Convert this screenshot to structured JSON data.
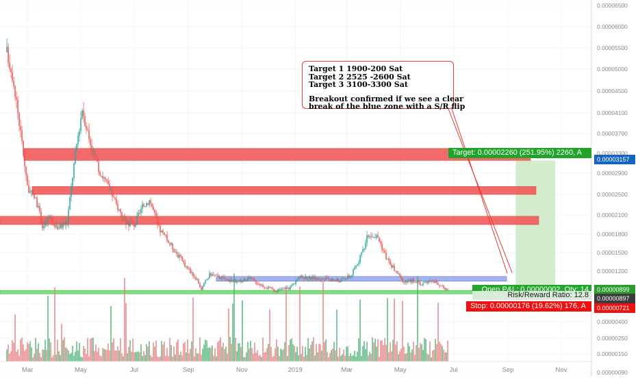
{
  "chart_data": {
    "type": "candlestick",
    "title": "",
    "xlabel": "",
    "ylabel": "",
    "x_ticks": [
      "Mar",
      "May",
      "Jul",
      "Sep",
      "Nov",
      "2019",
      "Mar",
      "May",
      "Jul",
      "Sep",
      "Nov"
    ],
    "y_ticks": [
      "0.00006500",
      "0.00006000",
      "0.00005500",
      "0.00005000",
      "0.00004500",
      "0.00004100",
      "0.00003700",
      "0.00003300",
      "0.00002900",
      "0.00002500",
      "0.00002100",
      "0.00001800",
      "0.00001500",
      "0.00001200",
      "0.00000900",
      "0.00000600",
      "0.00000400",
      "0.00000250",
      "0.00000150",
      "0.00000090"
    ],
    "price_path": [
      [
        "2018-02-05",
        5.4e-05
      ],
      [
        "2018-02-12",
        4.8e-05
      ],
      [
        "2018-02-20",
        3.8e-05
      ],
      [
        "2018-03-01",
        2.6e-05
      ],
      [
        "2018-03-10",
        2.4e-05
      ],
      [
        "2018-03-18",
        1.9e-05
      ],
      [
        "2018-03-25",
        2.05e-05
      ],
      [
        "2018-04-05",
        1.9e-05
      ],
      [
        "2018-04-15",
        2e-05
      ],
      [
        "2018-04-25",
        3.4e-05
      ],
      [
        "2018-05-02",
        4.2e-05
      ],
      [
        "2018-05-10",
        3.6e-05
      ],
      [
        "2018-05-20",
        3e-05
      ],
      [
        "2018-06-01",
        2.65e-05
      ],
      [
        "2018-06-10",
        2.3e-05
      ],
      [
        "2018-06-20",
        2e-05
      ],
      [
        "2018-07-01",
        1.95e-05
      ],
      [
        "2018-07-10",
        2.25e-05
      ],
      [
        "2018-07-18",
        2.4e-05
      ],
      [
        "2018-07-28",
        1.9e-05
      ],
      [
        "2018-08-10",
        1.65e-05
      ],
      [
        "2018-08-25",
        1.35e-05
      ],
      [
        "2018-09-08",
        1.1e-05
      ],
      [
        "2018-09-15",
        9e-06
      ],
      [
        "2018-09-25",
        1.15e-05
      ],
      [
        "2018-10-10",
        1.08e-05
      ],
      [
        "2018-10-25",
        1.02e-05
      ],
      [
        "2018-11-10",
        1.07e-05
      ],
      [
        "2018-11-25",
        9.5e-06
      ],
      [
        "2018-12-10",
        8.6e-06
      ],
      [
        "2018-12-25",
        9.2e-06
      ],
      [
        "2019-01-05",
        1.1e-05
      ],
      [
        "2019-01-20",
        1.08e-05
      ],
      [
        "2019-02-05",
        1.06e-05
      ],
      [
        "2019-02-20",
        1.04e-05
      ],
      [
        "2019-03-05",
        1.12e-05
      ],
      [
        "2019-03-15",
        1.4e-05
      ],
      [
        "2019-03-25",
        1.8e-05
      ],
      [
        "2019-04-05",
        1.75e-05
      ],
      [
        "2019-04-15",
        1.4e-05
      ],
      [
        "2019-04-25",
        1.2e-05
      ],
      [
        "2019-05-05",
        1e-05
      ],
      [
        "2019-05-15",
        1.05e-05
      ],
      [
        "2019-05-25",
        9.8e-06
      ],
      [
        "2019-06-05",
        1.06e-05
      ],
      [
        "2019-06-15",
        9.5e-06
      ],
      [
        "2019-06-24",
        8.8e-06
      ]
    ],
    "zones": [
      {
        "color": "red",
        "low": 3.157e-05,
        "high": 3.4e-05
      },
      {
        "color": "red",
        "low": 2.5e-05,
        "high": 2.65e-05
      },
      {
        "color": "red",
        "low": 1.95e-05,
        "high": 2.08e-05
      },
      {
        "color": "blue",
        "low": 1.03e-05,
        "high": 1.11e-05
      },
      {
        "color": "green",
        "low": 8.2e-06,
        "high": 8.7e-06
      }
    ],
    "position": {
      "entry": 8.97e-06,
      "target": 3.157e-05,
      "stop": 7.21e-06,
      "start": "2019-09-10",
      "end": "2019-10-25"
    },
    "axis_tags": {
      "target_value": "0.00003157",
      "current_value": "0.00000899",
      "entry_value": "0.00000897",
      "stop_value": "0.00000721"
    }
  },
  "position_labels": {
    "target": "Target: 0.00002260 (251.95%) 2260, A",
    "open_pnl": "Open P&L: 0.00000002, Qty: 14",
    "risk_reward": "Risk/Reward Ratio: 12.8",
    "stop": "Stop: 0.00000176 (19.62%) 176, A"
  },
  "annotation": {
    "line1": "Target 1 1900-200 Sat",
    "line2": "Target 2 2525 -2600 Sat",
    "line3": "Target 3 3100-3300 Sat",
    "line4": "Breakout confirmed if we see a clear",
    "line5": "break of the blue zone with a S/R flip"
  },
  "colors": {
    "up": "#26a69a",
    "down": "#ef5350",
    "red_zone": "#f05b5b",
    "blue_zone": "#9aabf0",
    "green_zone": "#72e06f",
    "target_zone": "#cdeac7",
    "axis_text": "#888888"
  }
}
